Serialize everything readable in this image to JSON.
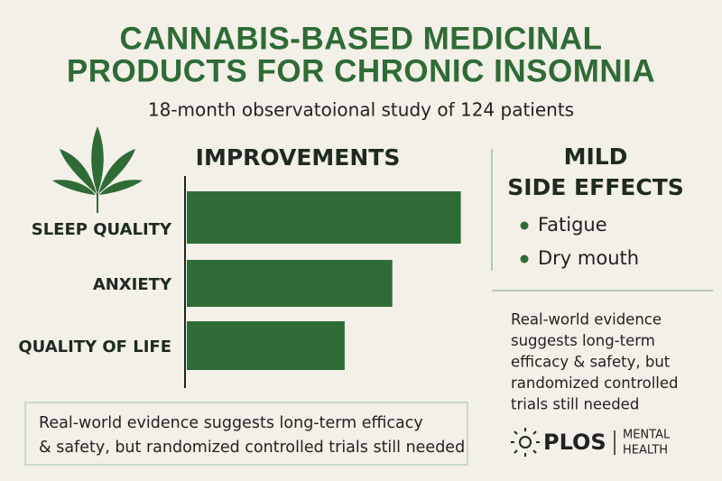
{
  "header": {
    "title_lines": [
      "CANNABIS-BASED MEDICINAL",
      "PRODUCTS FOR CHRONIC INSOMNIA"
    ],
    "subtitle": "18-month observatoional study of 124 patients"
  },
  "chart_data": {
    "type": "bar",
    "orientation": "horizontal",
    "title": "IMPROVEMENTS",
    "categories": [
      "SLEEP QUALITY",
      "ANXIETY",
      "QUALITY OF LIFE"
    ],
    "values": [
      92,
      69,
      53
    ],
    "color": "#2f6b36",
    "xlim": [
      0,
      100
    ]
  },
  "side_effects": {
    "title_lines": [
      "MILD",
      "SIDE EFFECTS"
    ],
    "items": [
      "Fatigue",
      "Dry mouth"
    ]
  },
  "side_note": {
    "lines": [
      "Real-world evidence",
      "suggests long-term",
      "efficacy & safety, but",
      "randomized controlled",
      "trials still needed"
    ]
  },
  "bottom_note": {
    "lines": [
      "Real-world evidence suggests long-term efficacy",
      "& safety, but randomized controlled trials still needed"
    ]
  },
  "logo": {
    "brand": "PLOS",
    "sub_lines": [
      "MENTAL",
      "HEALTH"
    ]
  }
}
